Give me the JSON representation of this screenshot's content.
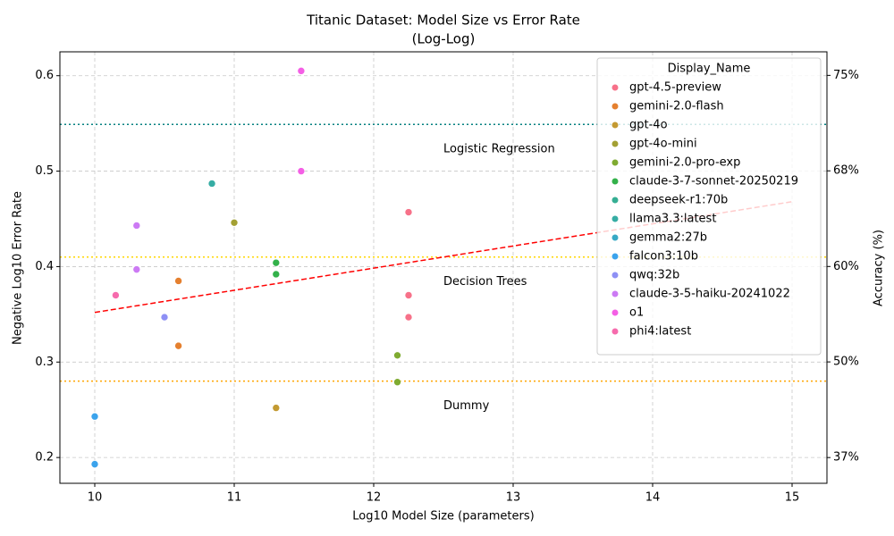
{
  "chart_data": {
    "type": "scatter",
    "title": [
      "Titanic Dataset: Model Size vs Error Rate",
      "(Log-Log)"
    ],
    "x_label": "Log10 Model Size (parameters)",
    "y_label": "Negative Log10 Error Rate",
    "y2_label": "Accuracy (%)",
    "y2_scale": "neg-log10-error",
    "xlim": [
      9.75,
      15.25
    ],
    "ylim": [
      0.173,
      0.625
    ],
    "y2lim": [
      32.9,
      76.3
    ],
    "xticks": [
      10,
      11,
      12,
      13,
      14,
      15
    ],
    "yticks": [
      0.2,
      0.3,
      0.4,
      0.5,
      0.6
    ],
    "y2ticks": [
      {
        "value": 36.9,
        "label": "37%"
      },
      {
        "value": 49.9,
        "label": "50%"
      },
      {
        "value": 60.2,
        "label": "60%"
      },
      {
        "value": 68.4,
        "label": "68%"
      },
      {
        "value": 74.9,
        "label": "75%"
      }
    ],
    "grid": true,
    "legend_title": "Display_Name",
    "legend_position": "upper-right",
    "reference_lines": [
      {
        "label": "Logistic Regression",
        "value": 0.549,
        "color": "#008080"
      },
      {
        "label": "Decision Trees",
        "value": 0.41,
        "color": "#ffd700"
      },
      {
        "label": "Dummy",
        "value": 0.28,
        "color": "#ffa500"
      }
    ],
    "annotation_x": 12.5,
    "trend": {
      "x": [
        10,
        15
      ],
      "values": [
        0.352,
        0.468
      ],
      "color": "#ff0000"
    },
    "series": [
      {
        "name": "gpt-4.5-preview",
        "color": "#f77189",
        "x": [
          12.25,
          12.25,
          12.25
        ],
        "values": [
          0.457,
          0.37,
          0.347
        ]
      },
      {
        "name": "gemini-2.0-flash",
        "color": "#e5802f",
        "x": [
          10.6,
          10.6
        ],
        "values": [
          0.385,
          0.317
        ]
      },
      {
        "name": "gpt-4o",
        "color": "#c39a32",
        "x": [
          11.3
        ],
        "values": [
          0.252
        ]
      },
      {
        "name": "gpt-4o-mini",
        "color": "#a3a033",
        "x": [
          11.0
        ],
        "values": [
          0.446
        ]
      },
      {
        "name": "gemini-2.0-pro-exp",
        "color": "#7fab31",
        "x": [
          12.17,
          12.17
        ],
        "values": [
          0.307,
          0.279
        ]
      },
      {
        "name": "claude-3-7-sonnet-20250219",
        "color": "#33b14a",
        "x": [
          11.3,
          11.3
        ],
        "values": [
          0.404,
          0.392
        ]
      },
      {
        "name": "deepseek-r1:70b",
        "color": "#35ae93",
        "x": [],
        "values": []
      },
      {
        "name": "llama3.3:latest",
        "color": "#36ada4",
        "x": [
          10.84
        ],
        "values": [
          0.487
        ]
      },
      {
        "name": "gemma2:27b",
        "color": "#38a9c5",
        "x": [],
        "values": []
      },
      {
        "name": "falcon3:10b",
        "color": "#3ba3ec",
        "x": [
          10.0,
          10.0
        ],
        "values": [
          0.243,
          0.193
        ]
      },
      {
        "name": "qwq:32b",
        "color": "#8e90f5",
        "x": [
          10.5
        ],
        "values": [
          0.347
        ]
      },
      {
        "name": "claude-3-5-haiku-20241022",
        "color": "#cc7af4",
        "x": [
          10.3,
          10.3
        ],
        "values": [
          0.443,
          0.397
        ]
      },
      {
        "name": "o1",
        "color": "#f45fe5",
        "x": [
          11.48,
          11.48
        ],
        "values": [
          0.605,
          0.5
        ]
      },
      {
        "name": "phi4:latest",
        "color": "#f66bad",
        "x": [
          10.15
        ],
        "values": [
          0.37
        ]
      }
    ]
  }
}
